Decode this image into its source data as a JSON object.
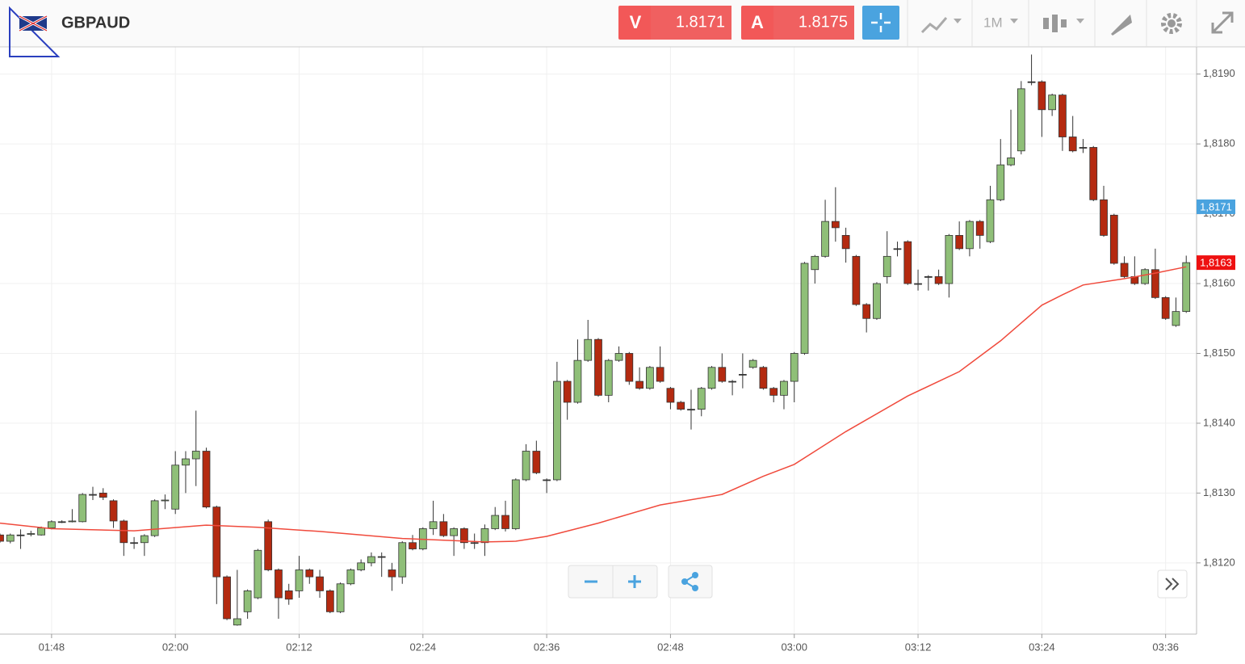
{
  "toolbar": {
    "symbol": "GBPAUD",
    "sell_label": "V",
    "sell_price": "1.8171",
    "buy_label": "A",
    "buy_price": "1.8175",
    "timeframe": "1M"
  },
  "chart_data": {
    "type": "candlestick",
    "x": [
      "01:43",
      "01:44",
      "01:45",
      "01:46",
      "01:47",
      "01:48",
      "01:49",
      "01:50",
      "01:51",
      "01:52",
      "01:53",
      "01:54",
      "01:55",
      "01:56",
      "01:57",
      "01:58",
      "01:59",
      "02:00",
      "02:01",
      "02:02",
      "02:03",
      "02:04",
      "02:05",
      "02:06",
      "02:07",
      "02:08",
      "02:09",
      "02:10",
      "02:11",
      "02:12",
      "02:13",
      "02:14",
      "02:15",
      "02:16",
      "02:17",
      "02:18",
      "02:19",
      "02:20",
      "02:21",
      "02:22",
      "02:23",
      "02:24",
      "02:25",
      "02:26",
      "02:27",
      "02:28",
      "02:29",
      "02:30",
      "02:31",
      "02:32",
      "02:33",
      "02:34",
      "02:35",
      "02:36",
      "02:37",
      "02:38",
      "02:39",
      "02:40",
      "02:41",
      "02:42",
      "02:43",
      "02:44",
      "02:45",
      "02:46",
      "02:47",
      "02:48",
      "02:49",
      "02:50",
      "02:51",
      "02:52",
      "02:53",
      "02:54",
      "02:55",
      "02:56",
      "02:57",
      "02:58",
      "02:59",
      "03:00",
      "03:01",
      "03:02",
      "03:03",
      "03:04",
      "03:05",
      "03:06",
      "03:07",
      "03:08",
      "03:09",
      "03:10",
      "03:11",
      "03:12",
      "03:13",
      "03:14",
      "03:15",
      "03:16",
      "03:17",
      "03:18",
      "03:19",
      "03:20",
      "03:21",
      "03:22",
      "03:23",
      "03:24",
      "03:25",
      "03:26",
      "03:27",
      "03:28",
      "03:29",
      "03:30",
      "03:31",
      "03:32",
      "03:33",
      "03:34",
      "03:35",
      "03:36",
      "03:37",
      "03:38"
    ],
    "open": [
      1.8124,
      1.81231,
      1.8124,
      1.81241,
      1.8124,
      1.8125,
      1.81259,
      1.81259,
      1.81259,
      1.81298,
      1.813,
      1.81289,
      1.8126,
      1.81229,
      1.81229,
      1.81239,
      1.81289,
      1.81277,
      1.8134,
      1.81349,
      1.8136,
      1.8128,
      1.8118,
      1.81111,
      1.8113,
      1.8115,
      1.81259,
      1.8119,
      1.8116,
      1.8116,
      1.8119,
      1.8118,
      1.8116,
      1.8113,
      1.8117,
      1.8119,
      1.812,
      1.81209,
      1.8119,
      1.8118,
      1.81229,
      1.8122,
      1.81249,
      1.81259,
      1.81239,
      1.81249,
      1.81229,
      1.81229,
      1.81249,
      1.81268,
      1.81249,
      1.81319,
      1.8136,
      1.81319,
      1.81319,
      1.8146,
      1.8143,
      1.8149,
      1.8152,
      1.8144,
      1.8149,
      1.815,
      1.8146,
      1.8145,
      1.8148,
      1.8145,
      1.8143,
      1.8142,
      1.8142,
      1.8145,
      1.8148,
      1.8146,
      1.8147,
      1.8148,
      1.8148,
      1.8145,
      1.8144,
      1.8146,
      1.815,
      1.8162,
      1.81639,
      1.81689,
      1.81669,
      1.81639,
      1.8157,
      1.8155,
      1.8161,
      1.8165,
      1.8166,
      1.816,
      1.8161,
      1.8161,
      1.816,
      1.81669,
      1.8165,
      1.81689,
      1.8166,
      1.8172,
      1.8177,
      1.8179,
      1.81889,
      1.81889,
      1.81849,
      1.8187,
      1.8181,
      1.81795,
      1.81795,
      1.8172,
      1.81698,
      1.81629,
      1.8161,
      1.816,
      1.8162,
      1.8158,
      1.8154,
      1.8156
    ],
    "high": [
      1.81242,
      1.81242,
      1.81248,
      1.81246,
      1.81252,
      1.81261,
      1.81261,
      1.81277,
      1.813,
      1.81309,
      1.81307,
      1.81291,
      1.81262,
      1.81237,
      1.81241,
      1.81291,
      1.81298,
      1.8136,
      1.8136,
      1.81418,
      1.81365,
      1.81282,
      1.81182,
      1.8119,
      1.81162,
      1.8122,
      1.81262,
      1.81192,
      1.8117,
      1.8121,
      1.81192,
      1.8119,
      1.81162,
      1.81172,
      1.81192,
      1.81205,
      1.81215,
      1.81215,
      1.812,
      1.81231,
      1.8124,
      1.81251,
      1.81289,
      1.8127,
      1.81251,
      1.81251,
      1.81242,
      1.81255,
      1.8128,
      1.81289,
      1.81321,
      1.8137,
      1.81375,
      1.81321,
      1.81488,
      1.81462,
      1.8152,
      1.81548,
      1.81522,
      1.81492,
      1.8151,
      1.81502,
      1.8148,
      1.81482,
      1.8151,
      1.81452,
      1.81432,
      1.81448,
      1.81452,
      1.81482,
      1.815,
      1.81462,
      1.815,
      1.81492,
      1.81482,
      1.81452,
      1.81462,
      1.81502,
      1.81631,
      1.81641,
      1.8172,
      1.81738,
      1.8168,
      1.81641,
      1.81572,
      1.81602,
      1.81675,
      1.8166,
      1.81662,
      1.8162,
      1.81612,
      1.8162,
      1.81671,
      1.81689,
      1.81691,
      1.81691,
      1.8174,
      1.81807,
      1.81849,
      1.8189,
      1.81928,
      1.81891,
      1.81872,
      1.81872,
      1.8184,
      1.81807,
      1.81797,
      1.8174,
      1.817,
      1.81639,
      1.81639,
      1.81622,
      1.8165,
      1.81582,
      1.8158,
      1.8164
    ],
    "low": [
      1.81229,
      1.81228,
      1.8122,
      1.81238,
      1.81239,
      1.81248,
      1.81257,
      1.81258,
      1.81258,
      1.8129,
      1.8129,
      1.8125,
      1.8121,
      1.8122,
      1.8121,
      1.81237,
      1.81277,
      1.8127,
      1.813,
      1.8131,
      1.81278,
      1.81141,
      1.81118,
      1.8111,
      1.8112,
      1.81148,
      1.81188,
      1.8112,
      1.8114,
      1.8115,
      1.8117,
      1.8115,
      1.81128,
      1.81128,
      1.81168,
      1.81188,
      1.81195,
      1.8118,
      1.8116,
      1.8117,
      1.81218,
      1.81218,
      1.8124,
      1.81237,
      1.8121,
      1.8122,
      1.8122,
      1.8121,
      1.81247,
      1.81245,
      1.81247,
      1.81317,
      1.81327,
      1.813,
      1.81317,
      1.81405,
      1.81428,
      1.81488,
      1.81438,
      1.8143,
      1.81488,
      1.81455,
      1.81448,
      1.81448,
      1.81458,
      1.8142,
      1.81418,
      1.81391,
      1.8141,
      1.81448,
      1.81458,
      1.8144,
      1.8145,
      1.81478,
      1.81448,
      1.8143,
      1.8142,
      1.8143,
      1.81498,
      1.816,
      1.81637,
      1.8166,
      1.8163,
      1.81568,
      1.8153,
      1.81548,
      1.816,
      1.81639,
      1.81598,
      1.8159,
      1.8159,
      1.81598,
      1.8158,
      1.81648,
      1.81639,
      1.8165,
      1.81658,
      1.81718,
      1.81768,
      1.81785,
      1.81884,
      1.8181,
      1.8184,
      1.8179,
      1.81788,
      1.81787,
      1.81718,
      1.81667,
      1.81627,
      1.81608,
      1.81598,
      1.81598,
      1.81578,
      1.81548,
      1.81538,
      1.81558
    ],
    "close": [
      1.81231,
      1.8124,
      1.8124,
      1.81242,
      1.8125,
      1.81259,
      1.81259,
      1.8126,
      1.81298,
      1.81298,
      1.81294,
      1.8126,
      1.81229,
      1.81229,
      1.81239,
      1.81289,
      1.8129,
      1.8134,
      1.81349,
      1.8136,
      1.8128,
      1.8118,
      1.8112,
      1.8112,
      1.8116,
      1.81218,
      1.8119,
      1.8115,
      1.81148,
      1.8119,
      1.8118,
      1.8116,
      1.8113,
      1.8117,
      1.8119,
      1.812,
      1.81209,
      1.81209,
      1.8118,
      1.81229,
      1.8122,
      1.81249,
      1.81259,
      1.81239,
      1.81249,
      1.81229,
      1.81229,
      1.81249,
      1.81268,
      1.81249,
      1.81319,
      1.8136,
      1.81329,
      1.81319,
      1.8146,
      1.8143,
      1.8149,
      1.8152,
      1.8144,
      1.8149,
      1.815,
      1.8146,
      1.8145,
      1.8148,
      1.8146,
      1.8143,
      1.8142,
      1.8142,
      1.8145,
      1.8148,
      1.8146,
      1.8146,
      1.8147,
      1.8149,
      1.8145,
      1.8144,
      1.8146,
      1.815,
      1.81629,
      1.81639,
      1.81689,
      1.8168,
      1.8165,
      1.8157,
      1.8155,
      1.816,
      1.81639,
      1.8165,
      1.816,
      1.816,
      1.8161,
      1.816,
      1.81669,
      1.8165,
      1.81689,
      1.81669,
      1.8172,
      1.8177,
      1.8178,
      1.81879,
      1.81889,
      1.81849,
      1.8187,
      1.8181,
      1.8179,
      1.81795,
      1.8172,
      1.81669,
      1.81629,
      1.8161,
      1.816,
      1.8162,
      1.8158,
      1.8155,
      1.8156,
      1.8163
    ],
    "up_color": "#8fbf78",
    "down_color": "#b42a10",
    "doji_color": "#333333",
    "moving_average": {
      "color": "#f04a3c",
      "x": [
        "01:43",
        "01:48",
        "01:56",
        "02:03",
        "02:08",
        "02:14",
        "02:22",
        "02:30",
        "02:33",
        "02:36",
        "02:41",
        "02:47",
        "02:53",
        "02:57",
        "03:00",
        "03:05",
        "03:11",
        "03:16",
        "03:20",
        "03:24",
        "03:26",
        "03:28",
        "03:32",
        "03:35",
        "03:38"
      ],
      "values": [
        1.81257,
        1.81249,
        1.81246,
        1.81254,
        1.81251,
        1.81245,
        1.81235,
        1.8123,
        1.81231,
        1.81238,
        1.81257,
        1.81283,
        1.81298,
        1.81324,
        1.81341,
        1.81388,
        1.81439,
        1.81474,
        1.81518,
        1.81569,
        1.81584,
        1.81598,
        1.81607,
        1.81615,
        1.81624
      ]
    },
    "price_markers": [
      {
        "value": 1.8171,
        "label": "1,8171",
        "color": "#4aa3df"
      },
      {
        "value": 1.8163,
        "label": "1,8163",
        "color": "#ee1111"
      }
    ],
    "xlim": [
      "01:43",
      "03:39"
    ],
    "xticks": [
      "01:48",
      "02:00",
      "02:12",
      "02:24",
      "02:36",
      "02:48",
      "03:00",
      "03:12",
      "03:24",
      "03:36"
    ],
    "ylim": [
      1.81098,
      1.81939
    ],
    "yticks": [
      {
        "value": 1.812,
        "label": "1,8120"
      },
      {
        "value": 1.813,
        "label": "1,8130"
      },
      {
        "value": 1.814,
        "label": "1,8140"
      },
      {
        "value": 1.815,
        "label": "1,8150"
      },
      {
        "value": 1.816,
        "label": "1,8160"
      },
      {
        "value": 1.817,
        "label": "1,8170"
      },
      {
        "value": 1.818,
        "label": "1,8180"
      },
      {
        "value": 1.819,
        "label": "1,8190"
      }
    ],
    "grid": true
  }
}
